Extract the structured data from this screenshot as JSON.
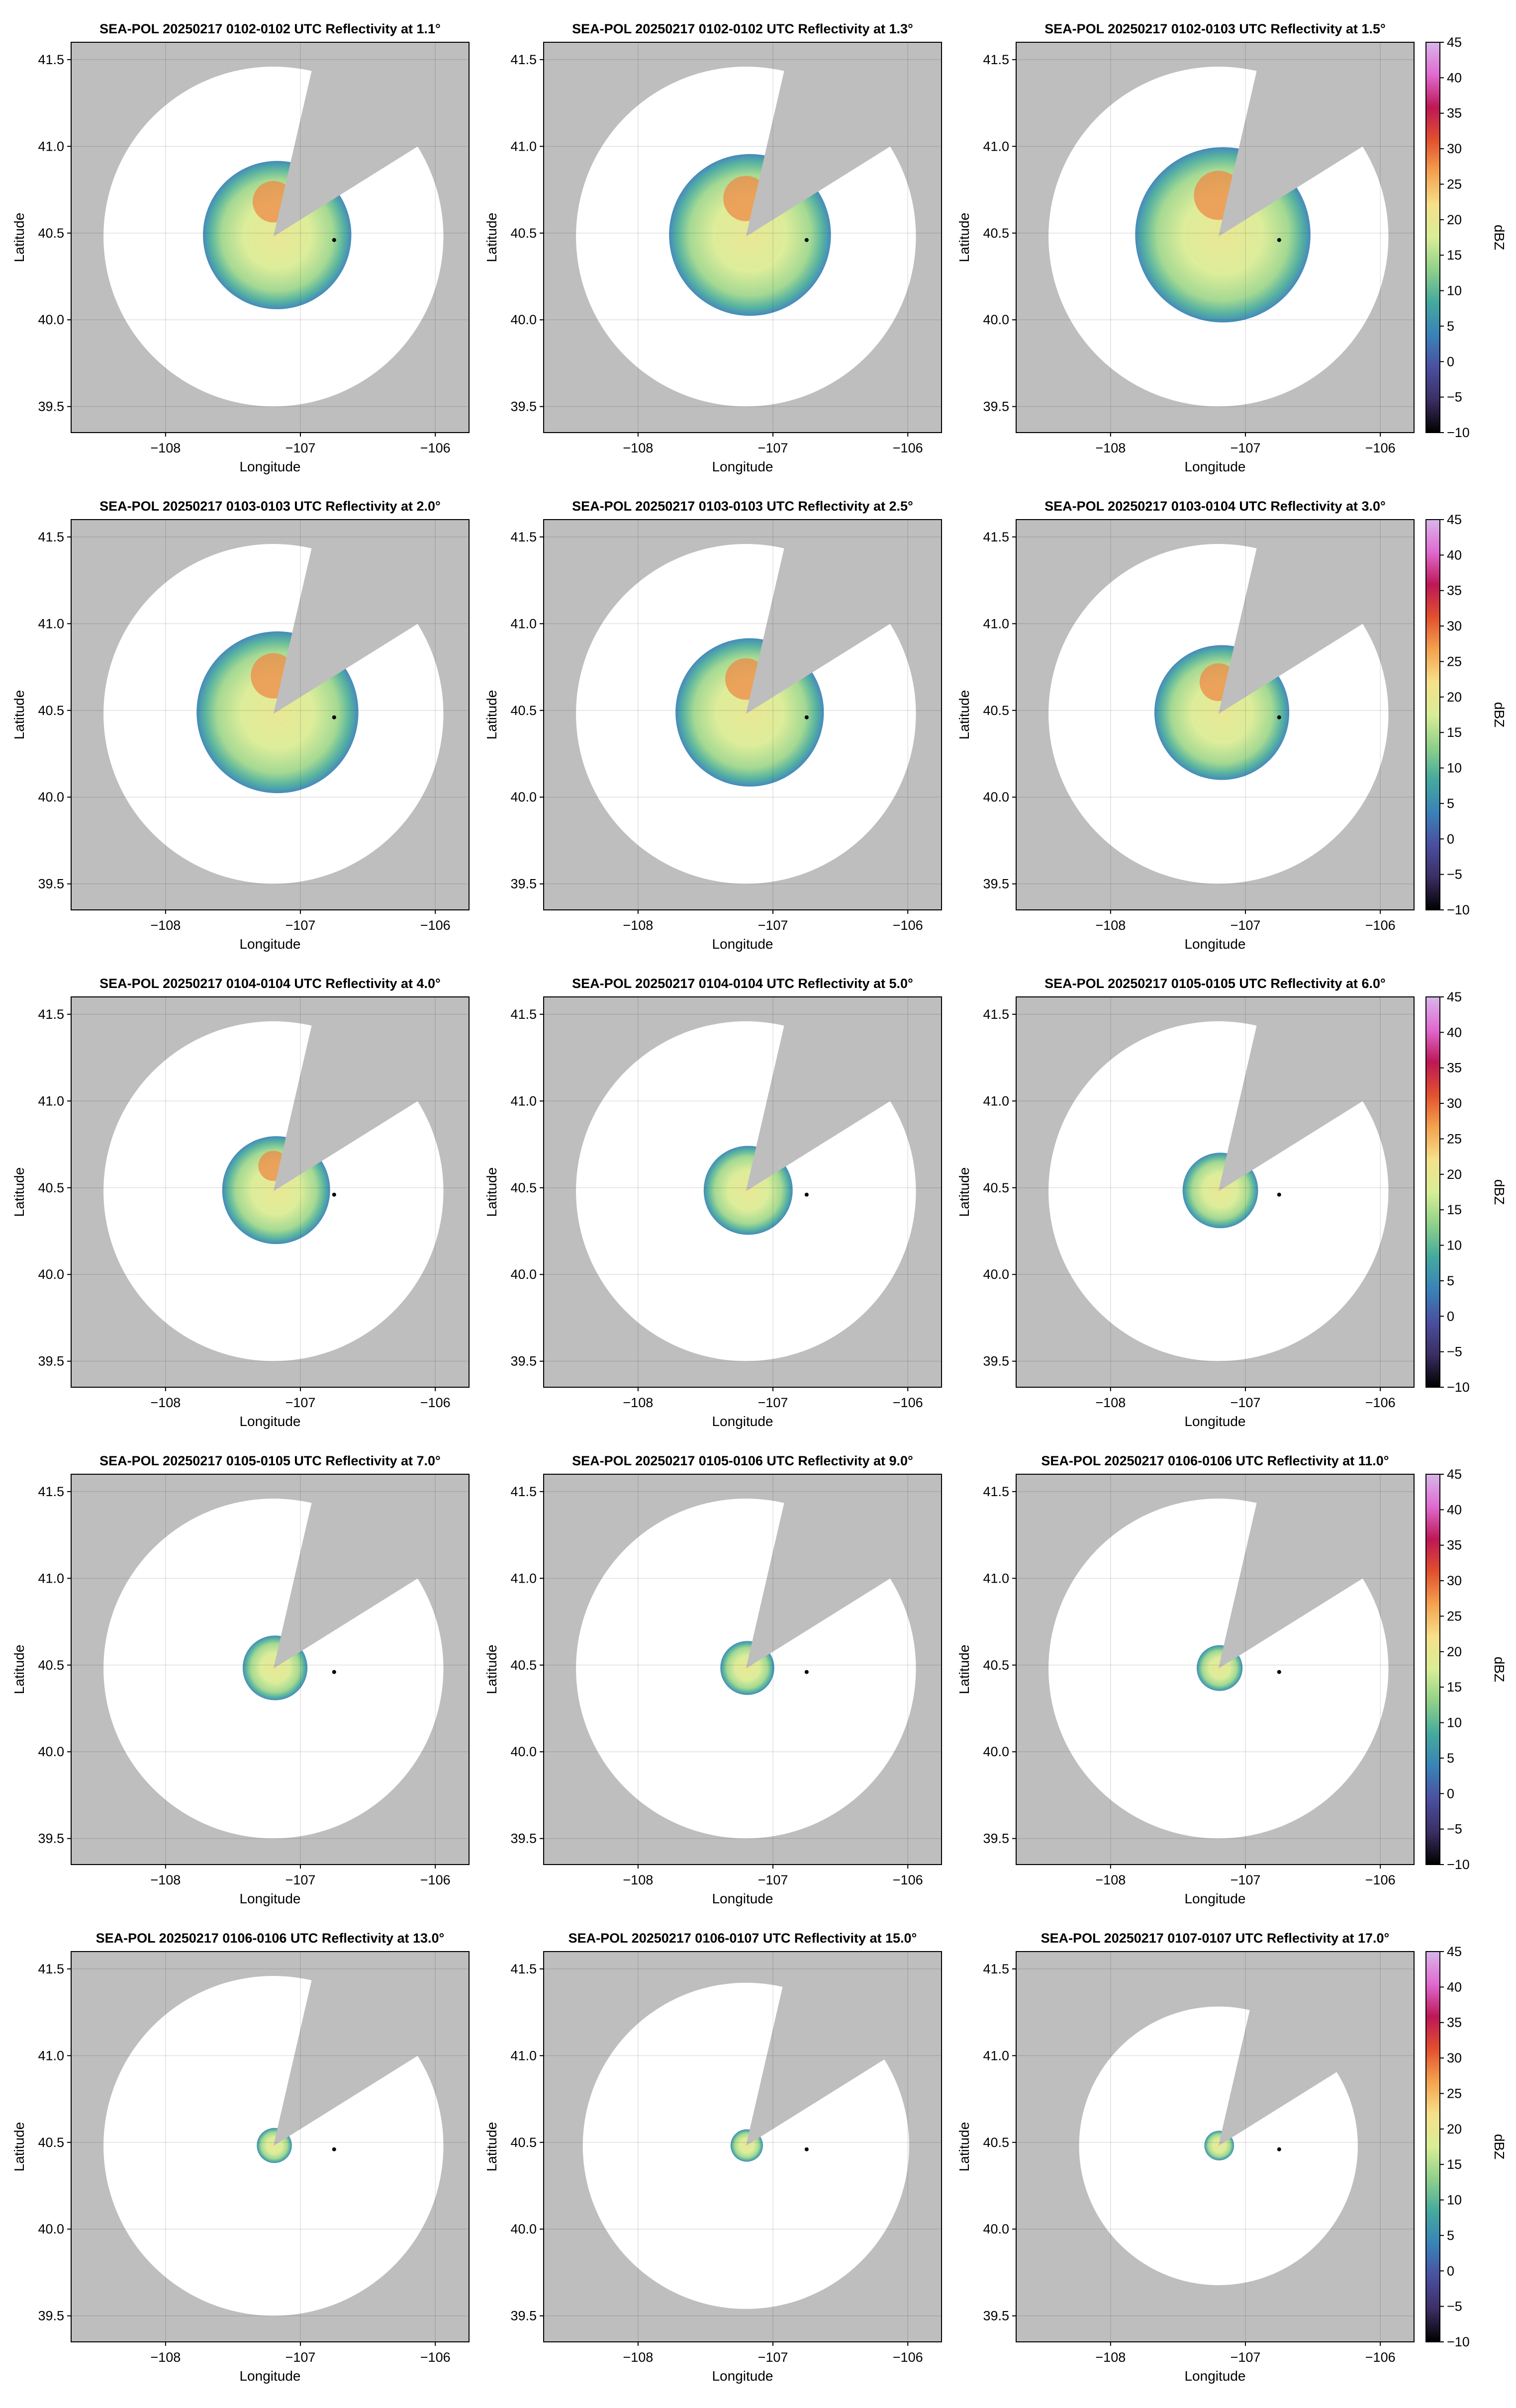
{
  "figure": {
    "panels": [
      {
        "title": "SEA-POL 20250217 0102-0102 UTC Reflectivity at 1.1°",
        "elevation": 1.1,
        "echo_radius_deg": 0.55,
        "coverage": "full"
      },
      {
        "title": "SEA-POL 20250217 0102-0102 UTC Reflectivity at 1.3°",
        "elevation": 1.3,
        "echo_radius_deg": 0.6,
        "coverage": "full"
      },
      {
        "title": "SEA-POL 20250217 0102-0103 UTC Reflectivity at 1.5°",
        "elevation": 1.5,
        "echo_radius_deg": 0.65,
        "coverage": "full"
      },
      {
        "title": "SEA-POL 20250217 0103-0103 UTC Reflectivity at 2.0°",
        "elevation": 2.0,
        "echo_radius_deg": 0.6,
        "coverage": "full"
      },
      {
        "title": "SEA-POL 20250217 0103-0103 UTC Reflectivity at 2.5°",
        "elevation": 2.5,
        "echo_radius_deg": 0.55,
        "coverage": "full"
      },
      {
        "title": "SEA-POL 20250217 0103-0104 UTC Reflectivity at 3.0°",
        "elevation": 3.0,
        "echo_radius_deg": 0.5,
        "coverage": "full"
      },
      {
        "title": "SEA-POL 20250217 0104-0104 UTC Reflectivity at 4.0°",
        "elevation": 4.0,
        "echo_radius_deg": 0.4,
        "coverage": "full"
      },
      {
        "title": "SEA-POL 20250217 0104-0104 UTC Reflectivity at 5.0°",
        "elevation": 5.0,
        "echo_radius_deg": 0.33,
        "coverage": "full"
      },
      {
        "title": "SEA-POL 20250217 0105-0105 UTC Reflectivity at 6.0°",
        "elevation": 6.0,
        "echo_radius_deg": 0.28,
        "coverage": "full"
      },
      {
        "title": "SEA-POL 20250217 0105-0105 UTC Reflectivity at 7.0°",
        "elevation": 7.0,
        "echo_radius_deg": 0.24,
        "coverage": "full"
      },
      {
        "title": "SEA-POL 20250217 0105-0106 UTC Reflectivity at 9.0°",
        "elevation": 9.0,
        "echo_radius_deg": 0.2,
        "coverage": "full"
      },
      {
        "title": "SEA-POL 20250217 0106-0106 UTC Reflectivity at 11.0°",
        "elevation": 11.0,
        "echo_radius_deg": 0.17,
        "coverage": "full"
      },
      {
        "title": "SEA-POL 20250217 0106-0106 UTC Reflectivity at 13.0°",
        "elevation": 13.0,
        "echo_radius_deg": 0.13,
        "coverage": "full"
      },
      {
        "title": "SEA-POL 20250217 0106-0107 UTC Reflectivity at 15.0°",
        "elevation": 15.0,
        "echo_radius_deg": 0.12,
        "coverage": "partial"
      },
      {
        "title": "SEA-POL 20250217 0107-0107 UTC Reflectivity at 17.0°",
        "elevation": 17.0,
        "echo_radius_deg": 0.11,
        "coverage": "small"
      }
    ],
    "axes": {
      "xlabel": "Longitude",
      "ylabel": "Latitude",
      "xlim": [
        -108.7,
        -105.75
      ],
      "ylim": [
        39.35,
        41.6
      ],
      "xticks": [
        -108,
        -107,
        -106
      ],
      "xtick_labels": [
        "−108",
        "−107",
        "−106"
      ],
      "yticks": [
        39.5,
        40.0,
        40.5,
        41.0,
        41.5
      ],
      "ytick_labels": [
        "39.5",
        "40.0",
        "40.5",
        "41.0",
        "41.5"
      ],
      "grid": true,
      "background_color": "#bebebe"
    },
    "radar_center": {
      "lon": -107.2,
      "lat": 40.48
    },
    "marker_point": {
      "lon": -106.75,
      "lat": 40.46
    },
    "colorbar": {
      "label": "dBZ",
      "range": [
        -10,
        45
      ],
      "ticks": [
        -10,
        -5,
        0,
        5,
        10,
        15,
        20,
        25,
        30,
        35,
        40,
        45
      ],
      "tick_labels": [
        "−10",
        "−5",
        "0",
        "5",
        "10",
        "15",
        "20",
        "25",
        "30",
        "35",
        "40",
        "45"
      ],
      "colors": [
        "#000000",
        "#3b2e63",
        "#4a4fa0",
        "#3a82b8",
        "#44a99e",
        "#8fd08a",
        "#d8ee96",
        "#f6e08a",
        "#f4a24f",
        "#e2502e",
        "#bd1756",
        "#e06ad0",
        "#d8b6ea"
      ]
    }
  }
}
